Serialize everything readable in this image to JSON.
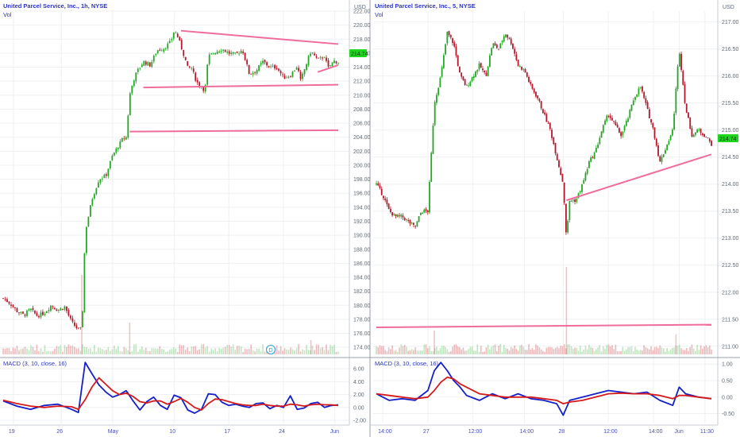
{
  "left_chart": {
    "title": "United Parcel Service, Inc., 1h, NYSE",
    "vol_label": "Vol",
    "currency": "USD",
    "price_axis": [
      "222.00",
      "220.00",
      "218.00",
      "216.00",
      "214.00",
      "212.00",
      "210.00",
      "208.00",
      "206.00",
      "204.00",
      "202.00",
      "200.00",
      "198.00",
      "196.00",
      "194.00",
      "192.00",
      "190.00",
      "188.00",
      "186.00",
      "184.00",
      "182.00",
      "180.00",
      "178.00",
      "176.00",
      "174.00"
    ],
    "price_tag": "214.74",
    "time_axis": [
      "19",
      "26",
      "May",
      "10",
      "17",
      "24",
      "Jun"
    ],
    "event_marker": "D",
    "macd": {
      "label": "MACD (3, 10, close, 16)",
      "axis": [
        "6.00",
        "4.00",
        "2.00",
        "0.00",
        "-2.00"
      ]
    }
  },
  "right_chart": {
    "title": "United Parcel Service, Inc., 5, NYSE",
    "vol_label": "Vol",
    "currency": "USD",
    "price_axis": [
      "217.00",
      "216.50",
      "216.00",
      "215.50",
      "215.00",
      "214.50",
      "214.00",
      "213.50",
      "213.00",
      "212.50",
      "212.00",
      "211.50",
      "211.00"
    ],
    "price_tag": "214.74",
    "time_axis": [
      "14:00",
      "27",
      "12:00",
      "14:00",
      "28",
      "12:00",
      "14:00",
      "Jun",
      "11:30"
    ],
    "macd": {
      "label": "MACD (3, 10, close, 16)",
      "axis": [
        "1.00",
        "0.50",
        "0.00",
        "-0.50"
      ]
    }
  },
  "chart_data": [
    {
      "type": "candlestick",
      "title": "United Parcel Service, Inc., 1h, NYSE",
      "ylim": [
        173,
        222
      ],
      "close_path": [
        [
          0,
          181
        ],
        [
          2,
          180.3
        ],
        [
          4,
          179.2
        ],
        [
          6,
          178.6
        ],
        [
          8,
          179.4
        ],
        [
          10,
          178.5
        ],
        [
          12,
          178.9
        ],
        [
          14,
          180
        ],
        [
          16,
          179.3
        ],
        [
          18,
          179.8
        ],
        [
          20,
          177.6
        ],
        [
          22,
          176.5
        ],
        [
          23,
          176.6
        ],
        [
          24,
          190.5
        ],
        [
          26,
          195.2
        ],
        [
          28,
          198
        ],
        [
          30,
          198.5
        ],
        [
          32,
          201.4
        ],
        [
          34,
          203
        ],
        [
          35,
          203.8
        ],
        [
          36,
          204
        ],
        [
          37,
          210
        ],
        [
          38,
          212
        ],
        [
          39,
          213.2
        ],
        [
          41,
          214.8
        ],
        [
          43,
          214.3
        ],
        [
          45,
          216.4
        ],
        [
          47,
          216.7
        ],
        [
          49,
          217.6
        ],
        [
          50,
          219.2
        ],
        [
          51,
          218.4
        ],
        [
          52,
          217
        ],
        [
          53,
          215.5
        ],
        [
          54,
          213.8
        ],
        [
          55,
          214
        ],
        [
          56,
          212.6
        ],
        [
          57,
          211.6
        ],
        [
          58,
          211.3
        ],
        [
          59,
          210.6
        ],
        [
          60,
          215.5
        ],
        [
          62,
          216.2
        ],
        [
          64,
          216.6
        ],
        [
          66,
          216
        ],
        [
          68,
          215.8
        ],
        [
          70,
          216.5
        ],
        [
          72,
          213
        ],
        [
          74,
          213.5
        ],
        [
          76,
          214.8
        ],
        [
          78,
          214
        ],
        [
          80,
          214
        ],
        [
          82,
          212.5
        ],
        [
          84,
          212.8
        ],
        [
          86,
          214.2
        ],
        [
          87,
          212
        ],
        [
          88,
          213.5
        ],
        [
          90,
          216.3
        ],
        [
          92,
          215
        ],
        [
          94,
          215.6
        ],
        [
          95,
          213.8
        ],
        [
          96,
          214.5
        ],
        [
          97,
          214.9
        ],
        [
          98,
          214.74
        ]
      ],
      "volume_relative": "spikes near 26 and May",
      "trendlines": [
        {
          "from": [
            52,
            219.2
          ],
          "to": [
            98,
            217.3
          ]
        },
        {
          "from": [
            41,
            211.1
          ],
          "to": [
            98,
            211.5
          ]
        },
        {
          "from": [
            37,
            204.8
          ],
          "to": [
            98,
            205
          ]
        },
        {
          "from": [
            92,
            213.3
          ],
          "to": [
            98,
            214.3
          ]
        }
      ]
    },
    {
      "type": "line",
      "title": "MACD (3, 10, close, 16)",
      "ylim": [
        -2.5,
        7.5
      ],
      "series": [
        {
          "color": "#1520c8",
          "x": [
            0,
            4,
            8,
            12,
            16,
            20,
            22,
            24,
            26,
            28,
            30,
            32,
            34,
            36,
            38,
            40,
            42,
            44,
            46,
            48,
            50,
            52,
            54,
            56,
            58,
            60,
            62,
            64,
            66,
            68,
            70,
            72,
            74,
            76,
            78,
            80,
            82,
            84,
            86,
            88,
            90,
            92,
            94,
            96,
            98
          ],
          "values": [
            1.0,
            0.2,
            -0.3,
            0.3,
            0.5,
            -0.3,
            -0.8,
            7.0,
            5.2,
            3.5,
            2.4,
            1.6,
            2.0,
            2.6,
            1.0,
            -0.4,
            0.9,
            1.6,
            0.3,
            -0.3,
            1.9,
            1.5,
            -0.4,
            -0.9,
            -0.3,
            2.1,
            2.0,
            0.8,
            0.3,
            0.5,
            0.2,
            0.0,
            0.6,
            0.7,
            -0.2,
            0.3,
            0.0,
            1.8,
            -0.3,
            -0.1,
            0.6,
            0.8,
            0.0,
            0.3,
            0.4
          ]
        },
        {
          "color": "#d61a1a",
          "x": [
            0,
            4,
            8,
            12,
            16,
            20,
            22,
            24,
            26,
            28,
            30,
            32,
            34,
            36,
            38,
            40,
            42,
            44,
            46,
            48,
            50,
            52,
            54,
            56,
            58,
            60,
            62,
            64,
            66,
            68,
            70,
            72,
            74,
            76,
            78,
            80,
            82,
            84,
            86,
            88,
            90,
            92,
            94,
            96,
            98
          ],
          "values": [
            1.1,
            0.6,
            0.2,
            0.0,
            0.2,
            0.1,
            -0.3,
            1.2,
            3.2,
            4.6,
            3.6,
            2.6,
            2.0,
            2.2,
            1.7,
            0.9,
            0.7,
            1.0,
            1.0,
            0.5,
            0.9,
            1.4,
            0.8,
            0.0,
            -0.4,
            0.6,
            1.3,
            1.2,
            0.9,
            0.6,
            0.4,
            0.3,
            0.3,
            0.5,
            0.3,
            0.2,
            0.2,
            0.5,
            0.4,
            0.2,
            0.4,
            0.5,
            0.4,
            0.4,
            0.3
          ]
        }
      ]
    },
    {
      "type": "candlestick",
      "title": "United Parcel Service, Inc., 5, NYSE",
      "ylim": [
        210.85,
        217.2
      ],
      "close_path": [
        [
          0,
          214
        ],
        [
          2,
          213.8
        ],
        [
          4,
          213.5
        ],
        [
          6,
          213.4
        ],
        [
          8,
          213.4
        ],
        [
          10,
          213.3
        ],
        [
          12,
          213.2
        ],
        [
          14,
          213.5
        ],
        [
          16,
          213.5
        ],
        [
          18,
          215.5
        ],
        [
          20,
          216
        ],
        [
          22,
          216.8
        ],
        [
          24,
          216.6
        ],
        [
          26,
          216
        ],
        [
          28,
          215.8
        ],
        [
          30,
          216
        ],
        [
          32,
          216.2
        ],
        [
          34,
          216
        ],
        [
          36,
          216.6
        ],
        [
          38,
          216.5
        ],
        [
          40,
          216.8
        ],
        [
          42,
          216.6
        ],
        [
          44,
          216.2
        ],
        [
          46,
          216.1
        ],
        [
          48,
          215.8
        ],
        [
          50,
          215.6
        ],
        [
          52,
          215.3
        ],
        [
          54,
          215
        ],
        [
          56,
          214.5
        ],
        [
          58,
          214
        ],
        [
          59,
          213
        ],
        [
          60,
          213.7
        ],
        [
          62,
          213.7
        ],
        [
          64,
          214
        ],
        [
          66,
          214.4
        ],
        [
          68,
          214.6
        ],
        [
          70,
          215
        ],
        [
          72,
          215.3
        ],
        [
          74,
          215.1
        ],
        [
          76,
          214.9
        ],
        [
          78,
          215.2
        ],
        [
          80,
          215.6
        ],
        [
          82,
          215.8
        ],
        [
          84,
          215.4
        ],
        [
          86,
          215
        ],
        [
          88,
          214.4
        ],
        [
          90,
          214.7
        ],
        [
          92,
          215
        ],
        [
          94,
          216.5
        ],
        [
          96,
          215.4
        ],
        [
          98,
          214.9
        ],
        [
          100,
          215
        ],
        [
          102,
          214.9
        ],
        [
          104,
          214.74
        ]
      ],
      "volume_relative": "spikes at 28 open and at Jun open",
      "trendlines": [
        {
          "from": [
            59,
            213.7
          ],
          "to": [
            104,
            214.55
          ]
        },
        {
          "from": [
            0,
            211.35
          ],
          "to": [
            104,
            211.4
          ]
        }
      ]
    },
    {
      "type": "line",
      "title": "MACD (3, 10, close, 16)",
      "ylim": [
        -0.8,
        1.15
      ],
      "series": [
        {
          "color": "#1520c8",
          "x": [
            0,
            4,
            8,
            12,
            16,
            18,
            20,
            22,
            24,
            26,
            28,
            32,
            36,
            40,
            44,
            48,
            52,
            56,
            58,
            60,
            64,
            68,
            72,
            76,
            80,
            84,
            88,
            92,
            94,
            96,
            100,
            104
          ],
          "values": [
            0.1,
            -0.1,
            -0.05,
            -0.1,
            0.2,
            0.8,
            1.05,
            0.8,
            0.5,
            0.3,
            0.05,
            -0.1,
            0.1,
            -0.05,
            0.1,
            -0.05,
            -0.1,
            -0.2,
            -0.55,
            -0.1,
            0.0,
            0.1,
            0.2,
            0.15,
            0.1,
            0.15,
            -0.1,
            -0.25,
            0.3,
            0.1,
            0.0,
            -0.05
          ]
        },
        {
          "color": "#d61a1a",
          "x": [
            0,
            4,
            8,
            12,
            16,
            18,
            20,
            22,
            24,
            26,
            28,
            32,
            36,
            40,
            44,
            48,
            52,
            56,
            58,
            60,
            64,
            68,
            72,
            76,
            80,
            84,
            88,
            92,
            94,
            96,
            100,
            104
          ],
          "values": [
            0.1,
            0.05,
            0.0,
            -0.05,
            0.0,
            0.2,
            0.45,
            0.6,
            0.55,
            0.4,
            0.3,
            0.1,
            0.05,
            0.0,
            0.0,
            0.0,
            -0.05,
            -0.1,
            -0.2,
            -0.15,
            -0.1,
            0.0,
            0.1,
            0.12,
            0.1,
            0.1,
            0.05,
            -0.05,
            0.05,
            0.05,
            0.0,
            -0.05
          ]
        }
      ]
    }
  ]
}
